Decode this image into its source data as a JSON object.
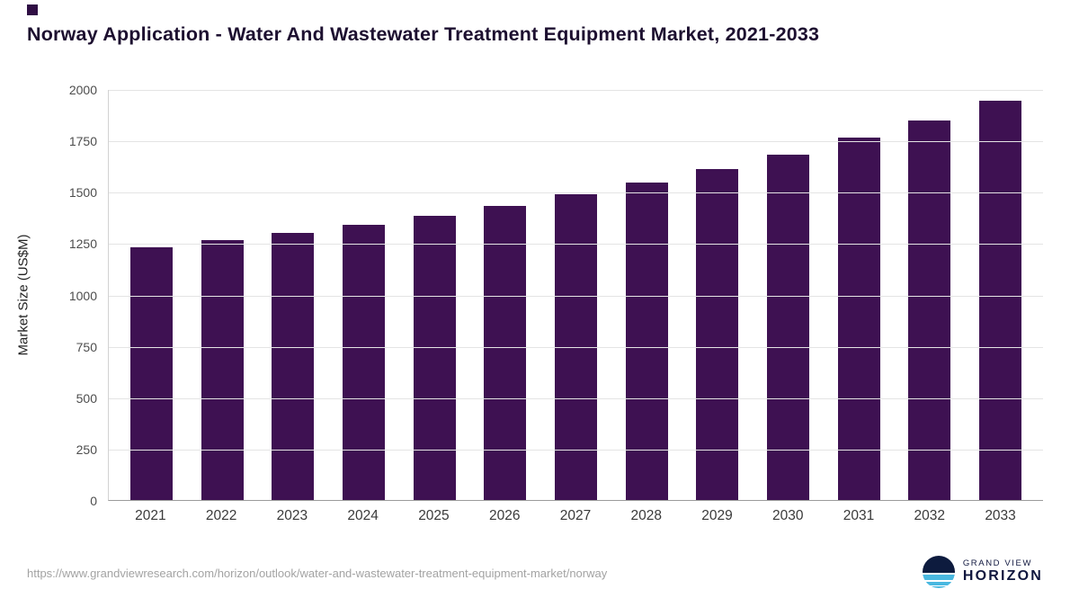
{
  "title": "Norway Application - Water And Wastewater Treatment Equipment Market, 2021-2033",
  "footer": {
    "source_url": "https://www.grandviewresearch.com/horizon/outlook/water-and-wastewater-treatment-equipment-market/norway"
  },
  "logo": {
    "line1": "GRAND VIEW",
    "line2": "HORIZON"
  },
  "colors": {
    "bar": "#3e1152",
    "accent": "#2f0e44",
    "grid": "#e4e4e4",
    "axis": "#9b9b9b",
    "logo_navy": "#10173f",
    "logo_blue": "#49b8e0"
  },
  "chart_data": {
    "type": "bar",
    "title": "Norway Application - Water And Wastewater Treatment Equipment Market, 2021-2033",
    "xlabel": "",
    "ylabel": "Market Size (US$M)",
    "categories": [
      "2021",
      "2022",
      "2023",
      "2024",
      "2025",
      "2026",
      "2027",
      "2028",
      "2029",
      "2030",
      "2031",
      "2032",
      "2033"
    ],
    "values": [
      1228,
      1265,
      1302,
      1341,
      1385,
      1430,
      1486,
      1545,
      1610,
      1682,
      1762,
      1848,
      1943
    ],
    "ylim": [
      0,
      2000
    ],
    "yticks": [
      0,
      250,
      500,
      750,
      1000,
      1250,
      1500,
      1750,
      2000
    ],
    "grid": true,
    "legend": false,
    "bar_color": "#3e1152"
  }
}
